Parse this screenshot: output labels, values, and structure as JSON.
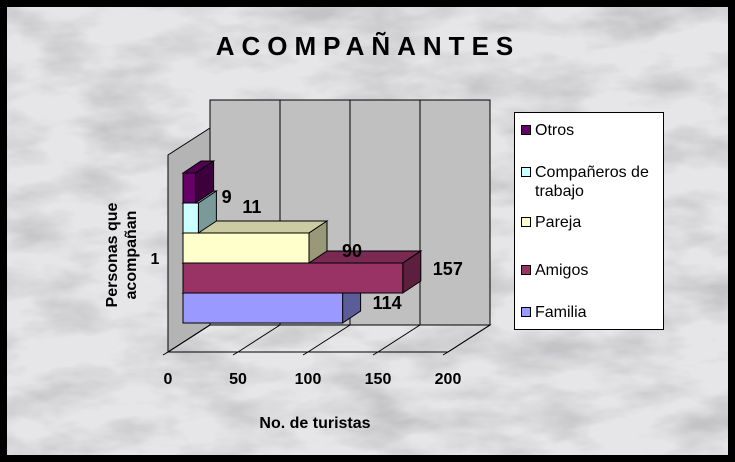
{
  "chart_data": {
    "type": "bar",
    "orientation": "horizontal",
    "title": "ACOMPAÑANTES",
    "xlabel": "No. de turistas",
    "ylabel": "Personas que acompañan",
    "categories": [
      "1"
    ],
    "series": [
      {
        "name": "Familia",
        "color": "#9999ff",
        "values": [
          114
        ]
      },
      {
        "name": "Amigos",
        "color": "#993366",
        "values": [
          157
        ]
      },
      {
        "name": "Pareja",
        "color": "#ffffcc",
        "values": [
          90
        ]
      },
      {
        "name": "Compañeros de trabajo",
        "color": "#ccffff",
        "values": [
          11
        ]
      },
      {
        "name": "Otros",
        "color": "#660066",
        "values": [
          9
        ]
      }
    ],
    "xlim": [
      0,
      200
    ],
    "xticks": [
      0,
      50,
      100,
      150,
      200
    ],
    "grid": true,
    "legend": "right"
  }
}
